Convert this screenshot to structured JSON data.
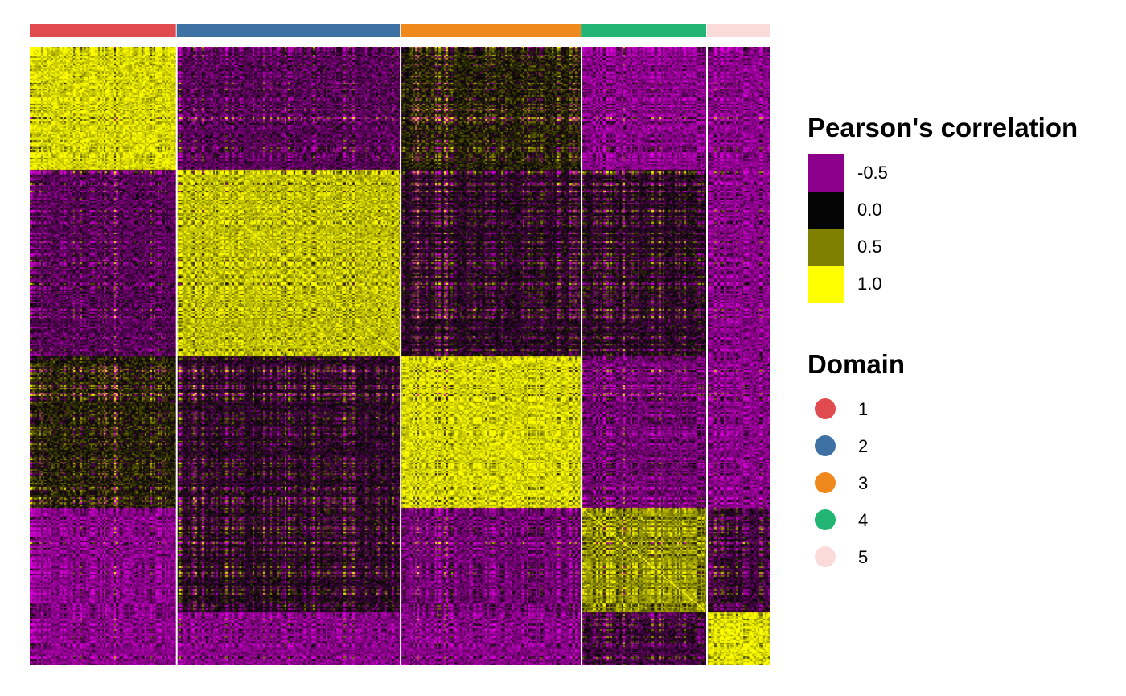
{
  "chart_data": {
    "type": "heatmap",
    "title": "",
    "xlabel": "",
    "ylabel": "",
    "matrix": "symmetric spot-by-spot correlation, rows and columns ordered by domain",
    "domains": [
      {
        "label": "1",
        "color": "#E04B4F",
        "size": 82,
        "within_block_correlation": 0.85
      },
      {
        "label": "2",
        "color": "#3F72A4",
        "size": 125,
        "within_block_correlation": 0.75
      },
      {
        "label": "3",
        "color": "#F0891D",
        "size": 101,
        "within_block_correlation": 0.85
      },
      {
        "label": "4",
        "color": "#22B573",
        "size": 70,
        "within_block_correlation": 0.55
      },
      {
        "label": "5",
        "color": "#FBDBDA",
        "size": 35,
        "within_block_correlation": 0.9
      }
    ],
    "between_block_correlation": [
      [
        1.0,
        -0.3,
        0.1,
        -0.5,
        -0.5
      ],
      [
        -0.3,
        1.0,
        -0.1,
        -0.1,
        -0.5
      ],
      [
        0.1,
        -0.1,
        1.0,
        -0.4,
        -0.5
      ],
      [
        -0.5,
        -0.1,
        -0.4,
        1.0,
        -0.2
      ],
      [
        -0.5,
        -0.5,
        -0.5,
        -0.2,
        1.0
      ]
    ],
    "color_scale": {
      "breaks": [
        -0.5,
        0.0,
        0.5,
        1.0
      ],
      "colors": [
        "#8A008A",
        "#050505",
        "#7F7F00",
        "#FFFF00"
      ],
      "extreme_negative_color": "#E000E0"
    },
    "legend": {
      "position": "right",
      "color_title": "Pearson's correlation",
      "color_labels": [
        "-0.5",
        "0.0",
        "0.5",
        "1.0"
      ],
      "domain_title": "Domain",
      "domain_labels": [
        "1",
        "2",
        "3",
        "4",
        "5"
      ]
    }
  }
}
